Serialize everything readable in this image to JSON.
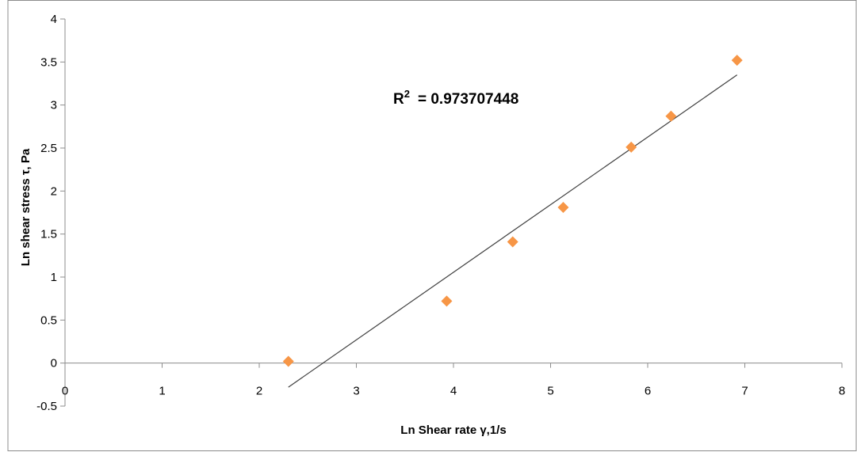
{
  "chart_data": {
    "type": "scatter",
    "title": "",
    "xlabel": "Ln Shear rate γ,1/s",
    "ylabel": "Ln shear stress τ, Pa",
    "xlim": [
      0,
      8
    ],
    "ylim": [
      -0.5,
      4
    ],
    "xticks": [
      0,
      1,
      2,
      3,
      4,
      5,
      6,
      7,
      8
    ],
    "yticks": [
      -0.5,
      0,
      0.5,
      1,
      1.5,
      2,
      2.5,
      3,
      3.5,
      4
    ],
    "grid": false,
    "legend": "none",
    "series": [
      {
        "marker": "diamond",
        "color": "#F79646",
        "points": [
          {
            "x": 2.3,
            "y": 0.02
          },
          {
            "x": 3.93,
            "y": 0.72
          },
          {
            "x": 4.61,
            "y": 1.41
          },
          {
            "x": 5.13,
            "y": 1.81
          },
          {
            "x": 5.83,
            "y": 2.51
          },
          {
            "x": 6.24,
            "y": 2.87
          },
          {
            "x": 6.92,
            "y": 3.52
          }
        ]
      }
    ],
    "trendline": {
      "type": "linear",
      "color": "#404040",
      "from": {
        "x": 2.3,
        "y": -0.28
      },
      "to": {
        "x": 6.92,
        "y": 3.35
      }
    },
    "annotation": {
      "prefix": "R",
      "superscript": "2",
      "value": "= 0.973707448"
    }
  }
}
